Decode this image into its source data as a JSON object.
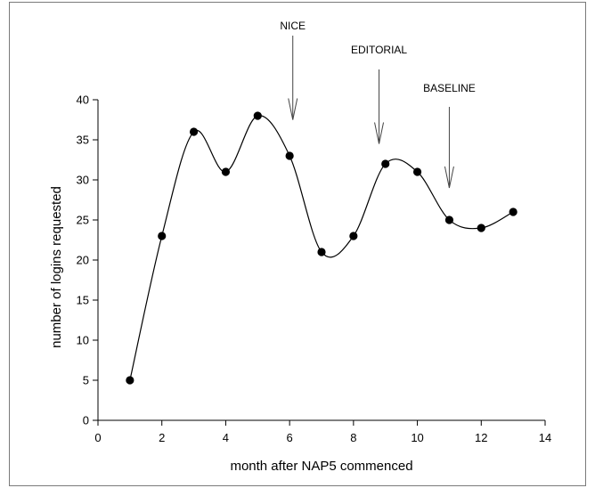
{
  "chart_data": {
    "type": "line",
    "xlabel": "month after NAP5 commenced",
    "ylabel": "number of logins requested",
    "xlim": [
      0,
      14
    ],
    "ylim": [
      0,
      40
    ],
    "x_ticks": [
      "0",
      "2",
      "4",
      "6",
      "8",
      "10",
      "12",
      "14"
    ],
    "y_ticks": [
      "0",
      "5",
      "10",
      "15",
      "20",
      "25",
      "30",
      "35",
      "40"
    ],
    "grid": false,
    "series": [
      {
        "x": [
          1,
          2,
          3,
          4,
          5,
          6,
          7,
          8,
          9,
          10,
          11,
          12,
          13
        ],
        "values": [
          5,
          23,
          36,
          31,
          38,
          33,
          21,
          23,
          32,
          31,
          25,
          24,
          26
        ],
        "line_style": "smoothed",
        "marker": "filled-circle",
        "color": "#000000"
      }
    ],
    "annotations": [
      {
        "label": "NICE",
        "x": 6.1,
        "arrow_tip_y": 37.5
      },
      {
        "label": "EDITORIAL",
        "x": 8.8,
        "arrow_tip_y": 34.5
      },
      {
        "label": "BASELINE",
        "x": 11.0,
        "arrow_tip_y": 29.0
      }
    ]
  }
}
